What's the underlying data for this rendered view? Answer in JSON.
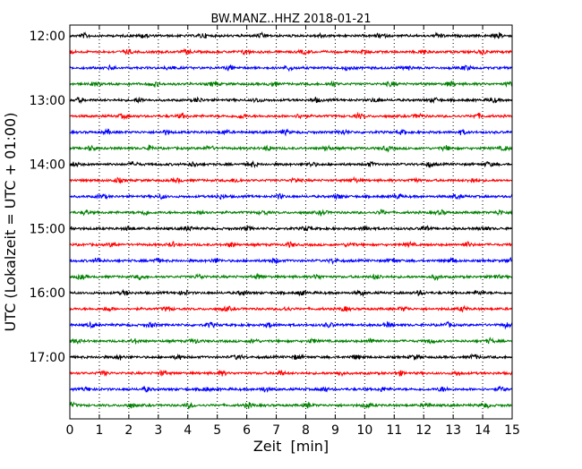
{
  "chart_data": {
    "type": "line",
    "title": "BW.MANZ..HHZ 2018-01-21",
    "xlabel": "Zeit  [min]",
    "ylabel": "UTC (Lokalzeit = UTC + 01:00)",
    "xlim": [
      0,
      15
    ],
    "x_ticks": [
      "0",
      "1",
      "2",
      "3",
      "4",
      "5",
      "6",
      "7",
      "8",
      "9",
      "10",
      "11",
      "12",
      "13",
      "14",
      "15"
    ],
    "y_tick_labels": [
      "12:00",
      "13:00",
      "14:00",
      "15:00",
      "16:00",
      "17:00"
    ],
    "grid": "vertical dotted lines at each minute",
    "series_note": "one waveform trace per 15-minute window from 12:00 to 17:45 UTC, colors cycle black, red, blue, green",
    "trace_start_times": [
      "12:00",
      "12:15",
      "12:30",
      "12:45",
      "13:00",
      "13:15",
      "13:30",
      "13:45",
      "14:00",
      "14:15",
      "14:30",
      "14:45",
      "15:00",
      "15:15",
      "15:30",
      "15:45",
      "16:00",
      "16:15",
      "16:30",
      "16:45",
      "17:00",
      "17:15",
      "17:30",
      "17:45"
    ],
    "trace_colors": [
      "#000000",
      "#ff0000",
      "#0000ff",
      "#008000"
    ]
  }
}
